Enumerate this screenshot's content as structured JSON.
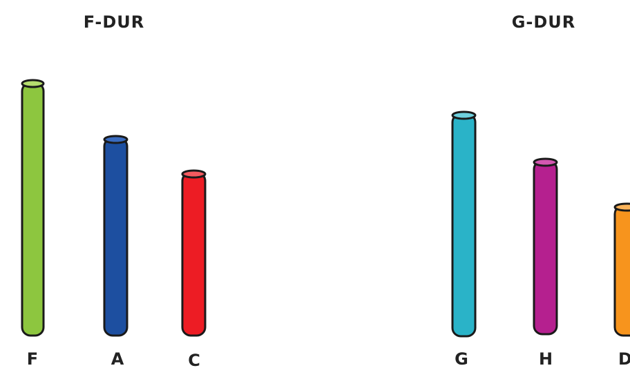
{
  "groups": [
    {
      "title": "F-DUR",
      "notes": [
        "F",
        "A",
        "C"
      ]
    },
    {
      "title": "G-DUR",
      "notes": [
        "G",
        "H",
        "D"
      ]
    }
  ]
}
